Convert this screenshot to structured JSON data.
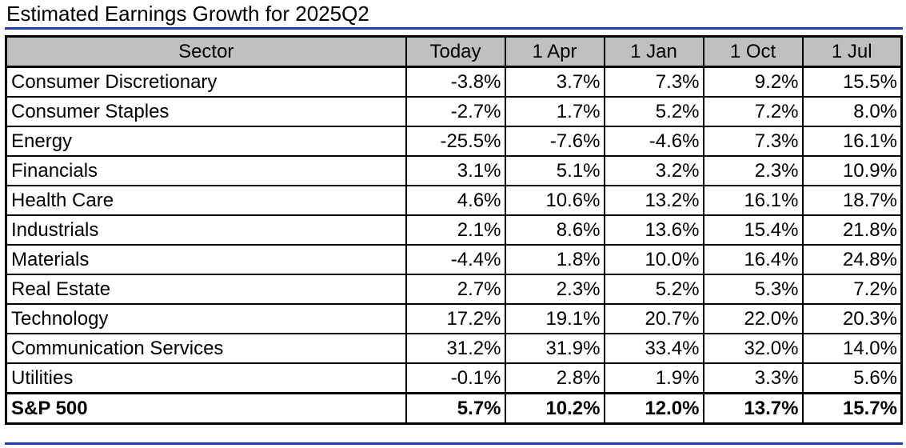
{
  "title": "Estimated Earnings Growth for 2025Q2",
  "chart_data": {
    "type": "table",
    "title": "Estimated Earnings Growth for 2025Q2",
    "columns": [
      "Sector",
      "Today",
      "1 Apr",
      "1 Jan",
      "1 Oct",
      "1 Jul"
    ],
    "rows": [
      {
        "sector": "Consumer Discretionary",
        "values": [
          "-3.8%",
          "3.7%",
          "7.3%",
          "9.2%",
          "15.5%"
        ]
      },
      {
        "sector": "Consumer Staples",
        "values": [
          "-2.7%",
          "1.7%",
          "5.2%",
          "7.2%",
          "8.0%"
        ]
      },
      {
        "sector": "Energy",
        "values": [
          "-25.5%",
          "-7.6%",
          "-4.6%",
          "7.3%",
          "16.1%"
        ]
      },
      {
        "sector": "Financials",
        "values": [
          "3.1%",
          "5.1%",
          "3.2%",
          "2.3%",
          "10.9%"
        ]
      },
      {
        "sector": "Health Care",
        "values": [
          "4.6%",
          "10.6%",
          "13.2%",
          "16.1%",
          "18.7%"
        ]
      },
      {
        "sector": "Industrials",
        "values": [
          "2.1%",
          "8.6%",
          "13.6%",
          "15.4%",
          "21.8%"
        ]
      },
      {
        "sector": "Materials",
        "values": [
          "-4.4%",
          "1.8%",
          "10.0%",
          "16.4%",
          "24.8%"
        ]
      },
      {
        "sector": "Real Estate",
        "values": [
          "2.7%",
          "2.3%",
          "5.2%",
          "5.3%",
          "7.2%"
        ]
      },
      {
        "sector": "Technology",
        "values": [
          "17.2%",
          "19.1%",
          "20.7%",
          "22.0%",
          "20.3%"
        ]
      },
      {
        "sector": "Communication Services",
        "values": [
          "31.2%",
          "31.9%",
          "33.4%",
          "32.0%",
          "14.0%"
        ]
      },
      {
        "sector": "Utilities",
        "values": [
          "-0.1%",
          "2.8%",
          "1.9%",
          "3.3%",
          "5.6%"
        ]
      }
    ],
    "total": {
      "sector": "S&P 500",
      "values": [
        "5.7%",
        "10.2%",
        "12.0%",
        "13.7%",
        "15.7%"
      ]
    }
  },
  "colors": {
    "rule": "#1f3fa8",
    "header_bg": "#c0c0c0",
    "border": "#000000"
  }
}
